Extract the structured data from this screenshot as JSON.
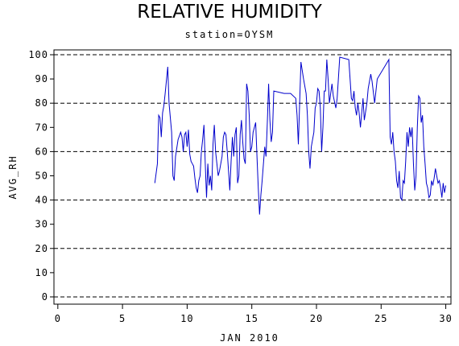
{
  "chart_data": {
    "type": "line",
    "title": "RELATIVE HUMIDITY",
    "subtitle": "station=OYSM",
    "x_label": "JAN 2010",
    "y_label": "AVG_RH",
    "xlim": [
      -0.3,
      30.4
    ],
    "ylim": [
      -3,
      102
    ],
    "xticks": [
      0,
      5,
      10,
      15,
      20,
      25,
      30
    ],
    "yticks": [
      0,
      10,
      20,
      30,
      40,
      50,
      60,
      70,
      80,
      90,
      100
    ],
    "grid_lines": [
      0,
      20,
      40,
      60,
      80,
      100
    ],
    "x": [
      7.5,
      7.7,
      7.8,
      7.9,
      8.0,
      8.1,
      8.2,
      8.3,
      8.5,
      8.6,
      8.8,
      8.9,
      9.0,
      9.1,
      9.3,
      9.5,
      9.6,
      9.7,
      9.8,
      9.9,
      10.0,
      10.1,
      10.2,
      10.3,
      10.4,
      10.5,
      10.6,
      10.7,
      10.8,
      10.9,
      11.0,
      11.1,
      11.2,
      11.3,
      11.4,
      11.5,
      11.6,
      11.7,
      11.8,
      11.9,
      12.0,
      12.1,
      12.2,
      12.3,
      12.4,
      12.5,
      12.6,
      12.7,
      12.8,
      12.9,
      13.0,
      13.1,
      13.2,
      13.3,
      13.4,
      13.5,
      13.6,
      13.7,
      13.8,
      13.9,
      14.0,
      14.1,
      14.2,
      14.3,
      14.4,
      14.5,
      14.6,
      14.7,
      14.8,
      14.9,
      15.0,
      15.1,
      15.3,
      15.4,
      15.5,
      15.6,
      15.7,
      15.8,
      16.0,
      16.1,
      16.2,
      16.3,
      16.4,
      16.5,
      16.6,
      16.7,
      17.5,
      18.0,
      18.4,
      18.5,
      18.6,
      18.8,
      19.0,
      19.2,
      19.3,
      19.4,
      19.5,
      19.6,
      19.8,
      19.9,
      20.0,
      20.1,
      20.2,
      20.3,
      20.4,
      20.5,
      20.6,
      20.7,
      20.8,
      20.9,
      21.0,
      21.2,
      21.3,
      21.5,
      21.6,
      21.8,
      22.5,
      22.7,
      22.8,
      22.9,
      23.0,
      23.1,
      23.2,
      23.3,
      23.4,
      23.6,
      23.7,
      23.9,
      24.0,
      24.2,
      24.3,
      24.5,
      24.7,
      25.6,
      25.7,
      25.8,
      25.9,
      26.0,
      26.1,
      26.2,
      26.3,
      26.4,
      26.5,
      26.6,
      26.7,
      26.8,
      26.9,
      27.0,
      27.1,
      27.2,
      27.3,
      27.4,
      27.5,
      27.6,
      27.7,
      27.8,
      27.9,
      28.0,
      28.1,
      28.2,
      28.3,
      28.4,
      28.5,
      28.6,
      28.7,
      28.8,
      28.9,
      29.0,
      29.1,
      29.2,
      29.3,
      29.4,
      29.5,
      29.6,
      29.7,
      29.8,
      29.9,
      30.0
    ],
    "series": [
      {
        "name": "AVG_RH",
        "color": "#0000cc",
        "values": [
          47,
          55,
          75,
          74,
          66,
          76,
          79,
          84,
          95,
          80,
          68,
          50,
          48,
          58,
          65,
          68,
          66,
          60,
          67,
          68,
          62,
          69,
          59,
          56,
          55,
          54,
          49,
          45,
          43,
          48,
          50,
          60,
          65,
          71,
          55,
          41,
          55,
          46,
          50,
          44,
          63,
          71,
          60,
          55,
          50,
          52,
          55,
          58,
          66,
          68,
          67,
          60,
          52,
          44,
          56,
          66,
          58,
          67,
          70,
          47,
          50,
          67,
          73,
          64,
          57,
          55,
          88,
          85,
          75,
          60,
          62,
          68,
          72,
          58,
          45,
          34,
          42,
          48,
          62,
          58,
          72,
          88,
          73,
          64,
          68,
          85,
          84,
          84,
          82,
          75,
          63,
          97,
          90,
          84,
          75,
          60,
          53,
          62,
          68,
          78,
          80,
          86,
          85,
          78,
          60,
          70,
          85,
          85,
          98,
          90,
          80,
          88,
          83,
          78,
          82,
          99,
          98,
          82,
          81,
          85,
          78,
          75,
          80,
          76,
          70,
          82,
          73,
          80,
          86,
          92,
          89,
          80,
          90,
          98,
          66,
          63,
          68,
          60,
          56,
          48,
          45,
          52,
          41,
          40,
          48,
          47,
          56,
          68,
          62,
          70,
          66,
          70,
          55,
          44,
          50,
          70,
          83,
          82,
          72,
          75,
          62,
          55,
          47,
          45,
          41,
          42,
          48,
          46,
          49,
          53,
          50,
          47,
          48,
          45,
          41,
          47,
          43,
          46
        ]
      }
    ]
  }
}
